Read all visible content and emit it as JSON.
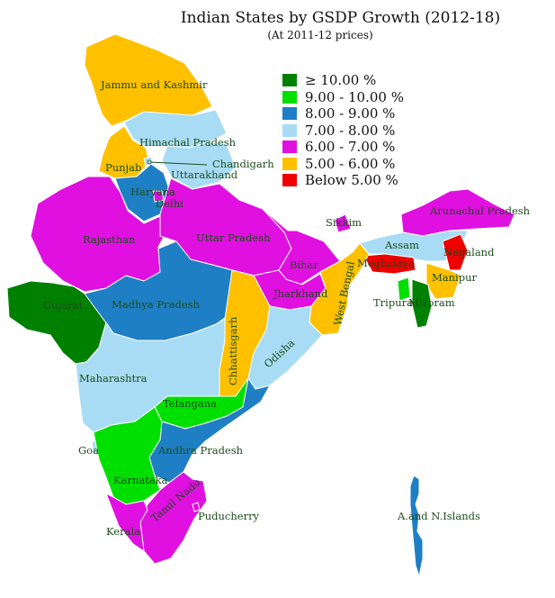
{
  "title": "Indian States by GSDP Growth (2012-18)",
  "subtitle": "(At 2011-12 prices)",
  "legend": [
    {
      "label": "≥ 10.00 %",
      "color": "#008000"
    },
    {
      "label": "9.00 - 10.00 %",
      "color": "#00e000"
    },
    {
      "label": "8.00 - 9.00 %",
      "color": "#1f7fc4"
    },
    {
      "label": "7.00 - 8.00 %",
      "color": "#a8dcf4"
    },
    {
      "label": "6.00 - 7.00 %",
      "color": "#e010e0"
    },
    {
      "label": "5.00 - 6.00 %",
      "color": "#ffc000"
    },
    {
      "label": "Below 5.00 %",
      "color": "#ee0000"
    }
  ],
  "states": [
    {
      "name": "Jammu and Kashmir",
      "band": 5
    },
    {
      "name": "Himachal Pradesh",
      "band": 3
    },
    {
      "name": "Punjab",
      "band": 5
    },
    {
      "name": "Chandigarh",
      "band": 3
    },
    {
      "name": "Uttarakhand",
      "band": 3
    },
    {
      "name": "Haryana",
      "band": 2
    },
    {
      "name": "Delhi",
      "band": 4
    },
    {
      "name": "Rajasthan",
      "band": 4
    },
    {
      "name": "Uttar Pradesh",
      "band": 4
    },
    {
      "name": "Sikkim",
      "band": 4
    },
    {
      "name": "Arunachal Pradesh",
      "band": 4
    },
    {
      "name": "Assam",
      "band": 3
    },
    {
      "name": "Nagaland",
      "band": 6
    },
    {
      "name": "Meghalaya",
      "band": 6
    },
    {
      "name": "Manipur",
      "band": 5
    },
    {
      "name": "Tripura",
      "band": 1
    },
    {
      "name": "Mizoram",
      "band": 0
    },
    {
      "name": "Bihar",
      "band": 4
    },
    {
      "name": "Jharkhand",
      "band": 4
    },
    {
      "name": "West Bengal",
      "band": 5
    },
    {
      "name": "Gujarat",
      "band": 0
    },
    {
      "name": "Madhya Pradesh",
      "band": 2
    },
    {
      "name": "Chhattisgarh",
      "band": 5
    },
    {
      "name": "Odisha",
      "band": 3
    },
    {
      "name": "Maharashtra",
      "band": 3
    },
    {
      "name": "Telangana",
      "band": 1
    },
    {
      "name": "Andhra Pradesh",
      "band": 2
    },
    {
      "name": "Goa",
      "band": 3
    },
    {
      "name": "Karnataka",
      "band": 1
    },
    {
      "name": "Tamil Nadu",
      "band": 4
    },
    {
      "name": "Puducherry",
      "band": 4
    },
    {
      "name": "Kerala",
      "band": 4
    },
    {
      "name": "A.and N.Islands",
      "band": 2
    }
  ]
}
